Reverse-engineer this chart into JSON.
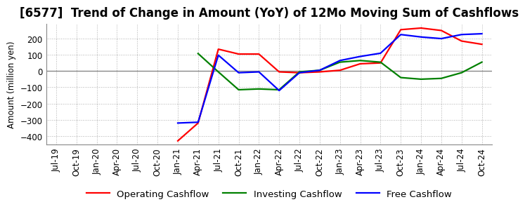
{
  "title": "[6577]  Trend of Change in Amount (YoY) of 12Mo Moving Sum of Cashflows",
  "ylabel": "Amount (million yen)",
  "ylim": [
    -450,
    290
  ],
  "yticks": [
    -400,
    -300,
    -200,
    -100,
    0,
    100,
    200
  ],
  "x_labels": [
    "Jul-19",
    "Oct-19",
    "Jan-20",
    "Apr-20",
    "Jul-20",
    "Oct-20",
    "Jan-21",
    "Apr-21",
    "Jul-21",
    "Oct-21",
    "Jan-22",
    "Apr-22",
    "Jul-22",
    "Oct-22",
    "Jan-23",
    "Apr-23",
    "Jul-23",
    "Oct-23",
    "Jan-24",
    "Apr-24",
    "Jul-24",
    "Oct-24"
  ],
  "op_color": "#ff0000",
  "inv_color": "#008000",
  "free_color": "#0000ff",
  "bg_color": "#ffffff",
  "grid_color": "#b0b0b0",
  "zero_line_color": "#888888",
  "title_fontsize": 12,
  "axis_fontsize": 8.5,
  "legend_fontsize": 9.5,
  "operating_x": [
    6,
    7,
    8,
    9,
    10,
    11,
    12,
    13,
    14,
    15,
    16,
    17,
    18,
    19,
    20,
    21
  ],
  "operating_y": [
    -430,
    -320,
    135,
    105,
    105,
    -5,
    -10,
    -5,
    5,
    45,
    50,
    255,
    265,
    250,
    185,
    165
  ],
  "investing_x": [
    7,
    8,
    9,
    10,
    11,
    12,
    13,
    14,
    15,
    16,
    17,
    18,
    19,
    20,
    21
  ],
  "investing_y": [
    108,
    -5,
    -115,
    -110,
    -115,
    -5,
    5,
    55,
    65,
    55,
    -40,
    -50,
    -45,
    -10,
    55
  ],
  "free_x": [
    6,
    7,
    8,
    9,
    10,
    11,
    12,
    13,
    14,
    15,
    16,
    17,
    18,
    19,
    20,
    21
  ],
  "free_y": [
    -320,
    -315,
    98,
    -10,
    -5,
    -120,
    -10,
    5,
    65,
    90,
    110,
    225,
    210,
    200,
    225,
    230
  ]
}
